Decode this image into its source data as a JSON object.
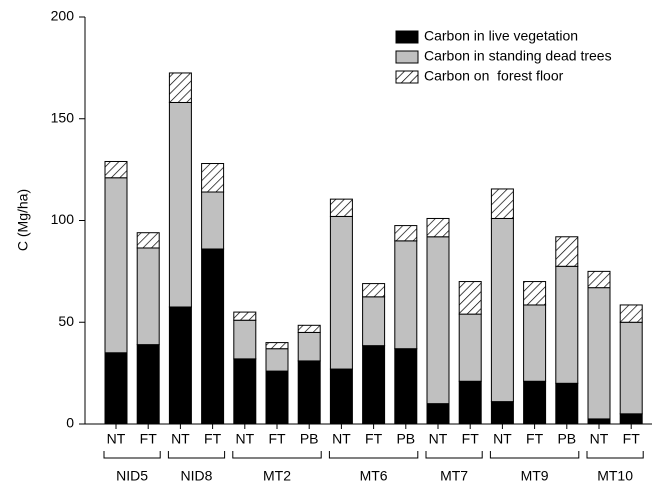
{
  "chart_data": {
    "type": "stacked-bar",
    "y_label": "C (Mg/ha)",
    "groups": [
      {
        "name": "NID5",
        "categories": [
          "NT",
          "FT"
        ]
      },
      {
        "name": "NID8",
        "categories": [
          "NT",
          "FT"
        ]
      },
      {
        "name": "MT2",
        "categories": [
          "NT",
          "FT",
          "PB"
        ]
      },
      {
        "name": "MT6",
        "categories": [
          "NT",
          "FT",
          "PB"
        ]
      },
      {
        "name": "MT7",
        "categories": [
          "NT",
          "FT"
        ]
      },
      {
        "name": "MT9",
        "categories": [
          "NT",
          "FT",
          "PB"
        ]
      },
      {
        "name": "MT10",
        "categories": [
          "NT",
          "FT"
        ]
      }
    ],
    "series": [
      {
        "name": "Carbon in live vegetation",
        "color": "#000000",
        "hatch": false,
        "values": [
          35,
          39,
          57.5,
          86,
          32,
          26,
          31,
          27,
          38.5,
          37,
          10,
          21,
          11,
          21,
          20,
          2.5,
          5
        ]
      },
      {
        "name": "Carbon in standing dead trees",
        "color": "#c0c0c0",
        "hatch": false,
        "values": [
          86,
          47.5,
          100.5,
          28,
          19,
          11,
          14,
          75,
          24,
          53,
          82,
          33,
          90,
          37.5,
          57.5,
          64.5,
          45
        ]
      },
      {
        "name": "Carbon on  forest floor",
        "color": "#ffffff",
        "hatch": true,
        "values": [
          8,
          7.5,
          14.5,
          14,
          4,
          3,
          3.5,
          8.5,
          6.5,
          7.5,
          9,
          16,
          14.5,
          11.5,
          14.5,
          8,
          8.5
        ]
      }
    ],
    "ylim": [
      0,
      200
    ],
    "yticks": [
      0,
      50,
      100,
      150,
      200
    ],
    "legend": "top-right"
  }
}
